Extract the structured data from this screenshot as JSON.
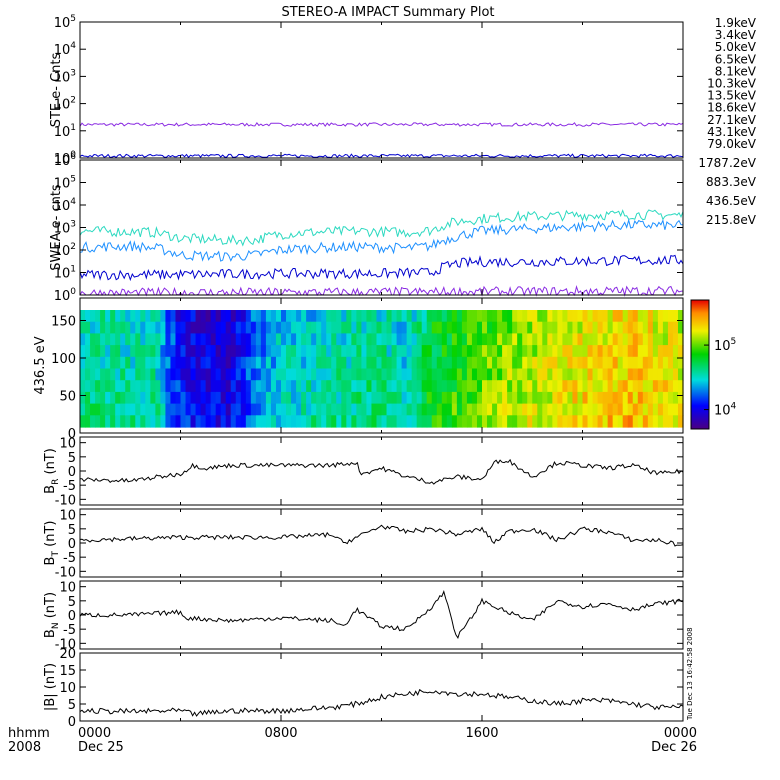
{
  "title": "STEREO-A IMPACT Summary Plot",
  "time_axis": {
    "header": [
      "hhmm",
      "2008"
    ],
    "ticks": [
      {
        "time": "0000",
        "date": "Dec 25",
        "hour": 0
      },
      {
        "time": "0800",
        "date": "",
        "hour": 8
      },
      {
        "time": "1600",
        "date": "",
        "hour": 16
      },
      {
        "time": "0000",
        "date": "Dec 26",
        "hour": 24
      }
    ]
  },
  "side_stamp": "Tue Dec 13 16:42:58 2008",
  "chart_data": [
    {
      "id": "ste",
      "type": "line",
      "ylabel": "STE e- Cnts",
      "yscale": "log",
      "ylim": [
        1,
        100000
      ],
      "yticks": [
        {
          "base": "10",
          "exp": "0"
        },
        {
          "base": "10",
          "exp": "1"
        },
        {
          "base": "10",
          "exp": "2"
        },
        {
          "base": "10",
          "exp": "3"
        },
        {
          "base": "10",
          "exp": "4"
        },
        {
          "base": "10",
          "exp": "5"
        }
      ],
      "legend": [
        {
          "name": "1.9keV",
          "color": "#8a2be2"
        },
        {
          "name": "3.4keV",
          "color": "#6a0dad"
        },
        {
          "name": "5.0keV",
          "color": "#0000cd"
        },
        {
          "name": "6.5keV",
          "color": "#1e90ff"
        },
        {
          "name": "8.1keV",
          "color": "#00ced1"
        },
        {
          "name": "10.3keV",
          "color": "#00c000"
        },
        {
          "name": "13.5keV",
          "color": "#32cd32"
        },
        {
          "name": "18.6keV",
          "color": "#c8d800"
        },
        {
          "name": "27.1keV",
          "color": "#ffa500"
        },
        {
          "name": "43.1keV",
          "color": "#ff6a00"
        },
        {
          "name": "79.0keV",
          "color": "#e00000"
        }
      ],
      "series": [
        {
          "name": "1.9keV",
          "color": "#8a2be2",
          "level": 17
        },
        {
          "name": "5.0keV",
          "color": "#0000cd",
          "level": 1.2
        }
      ]
    },
    {
      "id": "swea",
      "type": "line",
      "ylabel": "SWEA e- cnts",
      "yscale": "log",
      "ylim": [
        1,
        1000000
      ],
      "yticks": [
        {
          "base": "10",
          "exp": "0"
        },
        {
          "base": "10",
          "exp": "1"
        },
        {
          "base": "10",
          "exp": "2"
        },
        {
          "base": "10",
          "exp": "3"
        },
        {
          "base": "10",
          "exp": "4"
        },
        {
          "base": "10",
          "exp": "5"
        },
        {
          "base": "10",
          "exp": "6"
        }
      ],
      "legend": [
        {
          "name": "1787.2eV",
          "color": "#8a2be2"
        },
        {
          "name": "883.3eV",
          "color": "#0000cd"
        },
        {
          "name": "436.5eV",
          "color": "#1e90ff"
        },
        {
          "name": "215.8eV",
          "color": "#00ced1"
        }
      ],
      "series": [
        {
          "name": "215.8eV",
          "color": "#2bd9c0",
          "values": [
            [
              0,
              700
            ],
            [
              2,
              650
            ],
            [
              3,
              600
            ],
            [
              4,
              330
            ],
            [
              5,
              300
            ],
            [
              6,
              260
            ],
            [
              7,
              280
            ],
            [
              8,
              500
            ],
            [
              9,
              600
            ],
            [
              10,
              650
            ],
            [
              11,
              700
            ],
            [
              12,
              650
            ],
            [
              13,
              600
            ],
            [
              14,
              750
            ],
            [
              15,
              1800
            ],
            [
              16,
              2500
            ],
            [
              18,
              3200
            ],
            [
              20,
              3500
            ],
            [
              22,
              3800
            ],
            [
              24,
              3500
            ]
          ]
        },
        {
          "name": "436.5eV",
          "color": "#1e90ff",
          "values": [
            [
              0,
              130
            ],
            [
              2,
              150
            ],
            [
              3,
              120
            ],
            [
              4,
              60
            ],
            [
              5,
              55
            ],
            [
              6,
              50
            ],
            [
              7,
              60
            ],
            [
              8,
              100
            ],
            [
              9,
              120
            ],
            [
              10,
              130
            ],
            [
              11,
              140
            ],
            [
              12,
              130
            ],
            [
              13,
              120
            ],
            [
              14,
              150
            ],
            [
              15,
              400
            ],
            [
              16,
              700
            ],
            [
              18,
              900
            ],
            [
              20,
              1100
            ],
            [
              22,
              1300
            ],
            [
              24,
              1200
            ]
          ]
        },
        {
          "name": "883.3eV",
          "color": "#0000cd",
          "values": [
            [
              0,
              8
            ],
            [
              4,
              8
            ],
            [
              8,
              9
            ],
            [
              12,
              9
            ],
            [
              14,
              10
            ],
            [
              15,
              25
            ],
            [
              16,
              30
            ],
            [
              18,
              30
            ],
            [
              20,
              32
            ],
            [
              22,
              35
            ],
            [
              24,
              35
            ]
          ]
        },
        {
          "name": "1787.2eV",
          "color": "#8a2be2",
          "values": [
            [
              0,
              1.2
            ],
            [
              12,
              1.3
            ],
            [
              24,
              1.5
            ]
          ]
        }
      ]
    },
    {
      "id": "spectrogram",
      "type": "heatmap",
      "ylabel": "436.5 eV",
      "ylim": [
        0,
        180
      ],
      "yticks": [
        "0",
        "50",
        "100",
        "150"
      ],
      "colorbar": {
        "scale": "log",
        "range": [
          5000,
          500000
        ],
        "ticks": [
          {
            "base": "10",
            "exp": "4",
            "value": 10000
          },
          {
            "base": "10",
            "exp": "5",
            "value": 100000
          }
        ]
      },
      "intensity_profile": [
        [
          0,
          0.45
        ],
        [
          3,
          0.42
        ],
        [
          4,
          0.18
        ],
        [
          5,
          0.15
        ],
        [
          6,
          0.12
        ],
        [
          7,
          0.3
        ],
        [
          8,
          0.38
        ],
        [
          10,
          0.42
        ],
        [
          12,
          0.45
        ],
        [
          13,
          0.4
        ],
        [
          14,
          0.55
        ],
        [
          15,
          0.6
        ],
        [
          16,
          0.65
        ],
        [
          18,
          0.72
        ],
        [
          20,
          0.78
        ],
        [
          22,
          0.82
        ],
        [
          24,
          0.75
        ]
      ]
    },
    {
      "id": "br",
      "type": "line",
      "ylabel": "B_R (nT)",
      "ylabel_parts": [
        "B",
        "R",
        " (nT)"
      ],
      "ylim": [
        -12,
        12
      ],
      "yticks": [
        "-10",
        "-5",
        "0",
        "5",
        "10"
      ],
      "series": [
        {
          "name": "BR",
          "color": "#000000",
          "values": [
            [
              0,
              -3
            ],
            [
              2,
              -3.5
            ],
            [
              4,
              -1
            ],
            [
              4.5,
              2
            ],
            [
              5,
              1
            ],
            [
              6,
              2
            ],
            [
              8,
              2
            ],
            [
              10,
              2
            ],
            [
              11,
              3
            ],
            [
              11.2,
              -1
            ],
            [
              12,
              1
            ],
            [
              13,
              -2
            ],
            [
              14,
              -4
            ],
            [
              15,
              -2
            ],
            [
              16,
              -3
            ],
            [
              16.5,
              3
            ],
            [
              17,
              4
            ],
            [
              18,
              -2
            ],
            [
              19,
              3
            ],
            [
              20,
              2
            ],
            [
              21,
              1
            ],
            [
              22,
              2
            ],
            [
              23,
              -1
            ],
            [
              24,
              0
            ]
          ]
        }
      ]
    },
    {
      "id": "bt",
      "type": "line",
      "ylabel": "B_T (nT)",
      "ylabel_parts": [
        "B",
        "T",
        " (nT)"
      ],
      "ylim": [
        -12,
        12
      ],
      "yticks": [
        "-10",
        "-5",
        "0",
        "5",
        "10"
      ],
      "series": [
        {
          "name": "BT",
          "color": "#000000",
          "values": [
            [
              0,
              1
            ],
            [
              2,
              1.5
            ],
            [
              4,
              2
            ],
            [
              6,
              2
            ],
            [
              8,
              2
            ],
            [
              10,
              3
            ],
            [
              10.5,
              0
            ],
            [
              11,
              2
            ],
            [
              12,
              6
            ],
            [
              13,
              4
            ],
            [
              14,
              5
            ],
            [
              15,
              3
            ],
            [
              16,
              5
            ],
            [
              16.5,
              0
            ],
            [
              17,
              4
            ],
            [
              18,
              5
            ],
            [
              19,
              1
            ],
            [
              20,
              5
            ],
            [
              21,
              4
            ],
            [
              22,
              1
            ],
            [
              23,
              1
            ],
            [
              24,
              -1
            ]
          ]
        }
      ]
    },
    {
      "id": "bn",
      "type": "line",
      "ylabel": "B_N (nT)",
      "ylabel_parts": [
        "B",
        "N",
        " (nT)"
      ],
      "ylim": [
        -12,
        12
      ],
      "yticks": [
        "-10",
        "-5",
        "0",
        "5",
        "10"
      ],
      "series": [
        {
          "name": "BN",
          "color": "#000000",
          "values": [
            [
              0,
              0
            ],
            [
              2,
              0
            ],
            [
              4,
              1
            ],
            [
              4.2,
              -1
            ],
            [
              6,
              -2
            ],
            [
              8,
              -1
            ],
            [
              10,
              -2
            ],
            [
              10.5,
              -4
            ],
            [
              11,
              2
            ],
            [
              12,
              -4
            ],
            [
              13,
              -5
            ],
            [
              14,
              3
            ],
            [
              14.5,
              8
            ],
            [
              15,
              -8
            ],
            [
              15.5,
              -2
            ],
            [
              16,
              5
            ],
            [
              17,
              1
            ],
            [
              18,
              -2
            ],
            [
              19,
              5
            ],
            [
              20,
              3
            ],
            [
              21,
              4
            ],
            [
              22,
              2
            ],
            [
              23,
              4
            ],
            [
              24,
              5
            ]
          ]
        }
      ]
    },
    {
      "id": "bmag",
      "type": "line",
      "ylabel": "|B| (nT)",
      "ylim": [
        0,
        20
      ],
      "yticks": [
        "0",
        "5",
        "10",
        "15",
        "20"
      ],
      "series": [
        {
          "name": "|B|",
          "color": "#000000",
          "values": [
            [
              0,
              3
            ],
            [
              2,
              2.8
            ],
            [
              4,
              3
            ],
            [
              4.5,
              2
            ],
            [
              6,
              3
            ],
            [
              8,
              3
            ],
            [
              10,
              4
            ],
            [
              11,
              5
            ],
            [
              12,
              7
            ],
            [
              13,
              8
            ],
            [
              14,
              9
            ],
            [
              15,
              8
            ],
            [
              16,
              8
            ],
            [
              17,
              7
            ],
            [
              18,
              6
            ],
            [
              19,
              5
            ],
            [
              20,
              6
            ],
            [
              21,
              6
            ],
            [
              22,
              5
            ],
            [
              23,
              4
            ],
            [
              24,
              4
            ]
          ]
        }
      ]
    }
  ]
}
